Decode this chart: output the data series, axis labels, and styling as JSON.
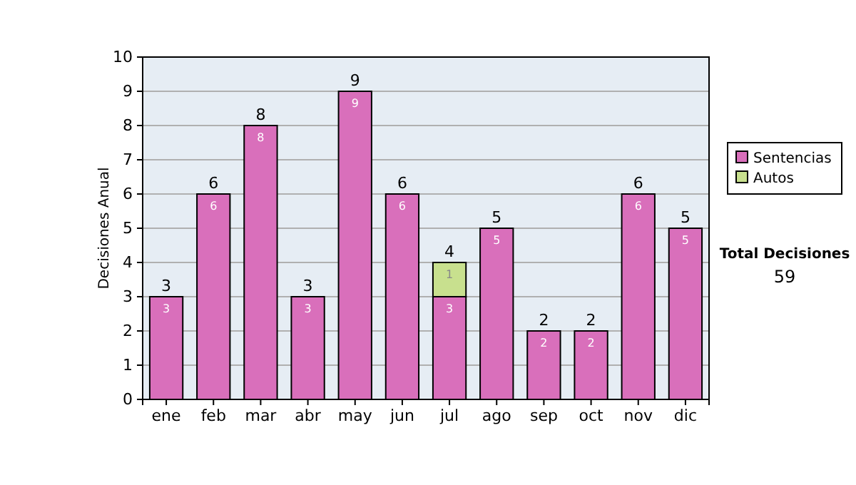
{
  "chart_data": {
    "type": "bar",
    "ylabel": "Decisiones Anual",
    "categories": [
      "ene",
      "feb",
      "mar",
      "abr",
      "may",
      "jun",
      "jul",
      "ago",
      "sep",
      "oct",
      "nov",
      "dic"
    ],
    "series": [
      {
        "name": "Sentencias",
        "color": "#d96fbb",
        "values": [
          3,
          6,
          8,
          3,
          9,
          6,
          3,
          5,
          2,
          2,
          6,
          5
        ]
      },
      {
        "name": "Autos",
        "color": "#c8e08e",
        "values": [
          null,
          null,
          null,
          null,
          null,
          null,
          1,
          null,
          null,
          null,
          null,
          null
        ]
      }
    ],
    "stacked": true,
    "data_labels": true,
    "totals": [
      "3",
      "6",
      "8",
      "3",
      "9",
      "6",
      "4",
      "5",
      "2",
      "2",
      "6",
      "5"
    ],
    "ylim": [
      0,
      10
    ],
    "yticks": [
      0,
      1,
      2,
      3,
      4,
      5,
      6,
      7,
      8,
      9,
      10
    ],
    "grid": "y",
    "legend": "right",
    "annotations": [
      "Total Decisiones",
      "59"
    ]
  }
}
